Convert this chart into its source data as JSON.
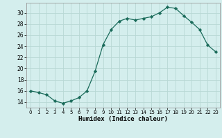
{
  "x": [
    0,
    1,
    2,
    3,
    4,
    5,
    6,
    7,
    8,
    9,
    10,
    11,
    12,
    13,
    14,
    15,
    16,
    17,
    18,
    19,
    20,
    21,
    22,
    23
  ],
  "y": [
    16.0,
    15.7,
    15.3,
    14.2,
    13.8,
    14.2,
    14.8,
    16.0,
    19.5,
    24.3,
    27.0,
    28.5,
    29.0,
    28.7,
    29.0,
    29.3,
    30.0,
    31.0,
    30.8,
    29.5,
    28.3,
    27.0,
    24.2,
    23.0
  ],
  "line_color": "#1a6b5a",
  "marker": "D",
  "marker_size": 2.2,
  "bg_color": "#d4eeed",
  "grid_color": "#b8d8d5",
  "xlabel": "Humidex (Indice chaleur)",
  "xlim": [
    -0.5,
    23.5
  ],
  "ylim": [
    13.0,
    31.8
  ],
  "yticks": [
    14,
    16,
    18,
    20,
    22,
    24,
    26,
    28,
    30
  ],
  "xticks": [
    0,
    1,
    2,
    3,
    4,
    5,
    6,
    7,
    8,
    9,
    10,
    11,
    12,
    13,
    14,
    15,
    16,
    17,
    18,
    19,
    20,
    21,
    22,
    23
  ]
}
